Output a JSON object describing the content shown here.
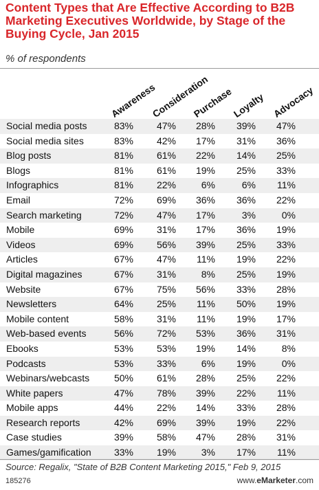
{
  "chart_data": {
    "type": "table",
    "title": "Content Types that Are Effective According to B2B Marketing Executives Worldwide, by Stage of the Buying Cycle, Jan 2015",
    "subtitle": "% of respondents",
    "columns": [
      "Awareness",
      "Consideration",
      "Purchase",
      "Loyalty",
      "Advocacy"
    ],
    "rows": [
      {
        "label": "Social media posts",
        "values": [
          "83%",
          "47%",
          "28%",
          "39%",
          "47%"
        ]
      },
      {
        "label": "Social media sites",
        "values": [
          "83%",
          "42%",
          "17%",
          "31%",
          "36%"
        ]
      },
      {
        "label": "Blog posts",
        "values": [
          "81%",
          "61%",
          "22%",
          "14%",
          "25%"
        ]
      },
      {
        "label": "Blogs",
        "values": [
          "81%",
          "61%",
          "19%",
          "25%",
          "33%"
        ]
      },
      {
        "label": "Infographics",
        "values": [
          "81%",
          "22%",
          "6%",
          "6%",
          "11%"
        ]
      },
      {
        "label": "Email",
        "values": [
          "72%",
          "69%",
          "36%",
          "36%",
          "22%"
        ]
      },
      {
        "label": "Search marketing",
        "values": [
          "72%",
          "47%",
          "17%",
          "3%",
          "0%"
        ]
      },
      {
        "label": "Mobile",
        "values": [
          "69%",
          "31%",
          "17%",
          "36%",
          "19%"
        ]
      },
      {
        "label": "Videos",
        "values": [
          "69%",
          "56%",
          "39%",
          "25%",
          "33%"
        ]
      },
      {
        "label": "Articles",
        "values": [
          "67%",
          "47%",
          "11%",
          "19%",
          "22%"
        ]
      },
      {
        "label": "Digital magazines",
        "values": [
          "67%",
          "31%",
          "8%",
          "25%",
          "19%"
        ]
      },
      {
        "label": "Website",
        "values": [
          "67%",
          "75%",
          "56%",
          "33%",
          "28%"
        ]
      },
      {
        "label": "Newsletters",
        "values": [
          "64%",
          "25%",
          "11%",
          "50%",
          "19%"
        ]
      },
      {
        "label": "Mobile content",
        "values": [
          "58%",
          "31%",
          "11%",
          "19%",
          "17%"
        ]
      },
      {
        "label": "Web-based events",
        "values": [
          "56%",
          "72%",
          "53%",
          "36%",
          "31%"
        ]
      },
      {
        "label": "Ebooks",
        "values": [
          "53%",
          "53%",
          "19%",
          "14%",
          "8%"
        ]
      },
      {
        "label": "Podcasts",
        "values": [
          "53%",
          "33%",
          "6%",
          "19%",
          "0%"
        ]
      },
      {
        "label": "Webinars/webcasts",
        "values": [
          "50%",
          "61%",
          "28%",
          "25%",
          "22%"
        ]
      },
      {
        "label": "White papers",
        "values": [
          "47%",
          "78%",
          "39%",
          "22%",
          "11%"
        ]
      },
      {
        "label": "Mobile apps",
        "values": [
          "44%",
          "22%",
          "14%",
          "33%",
          "28%"
        ]
      },
      {
        "label": "Research reports",
        "values": [
          "42%",
          "69%",
          "39%",
          "19%",
          "22%"
        ]
      },
      {
        "label": "Case studies",
        "values": [
          "39%",
          "58%",
          "47%",
          "28%",
          "31%"
        ]
      },
      {
        "label": "Games/gamification",
        "values": [
          "33%",
          "19%",
          "3%",
          "17%",
          "11%"
        ]
      }
    ]
  },
  "footer": {
    "source": "Source: Regalix, \"State of B2B Content Marketing 2015,\" Feb 9, 2015",
    "id": "185276",
    "brand_prefix": "www.",
    "brand_name": "eMarketer",
    "brand_suffix": ".com"
  },
  "colors": {
    "title": "#d9262a",
    "alt_row": "#eeeeee"
  }
}
